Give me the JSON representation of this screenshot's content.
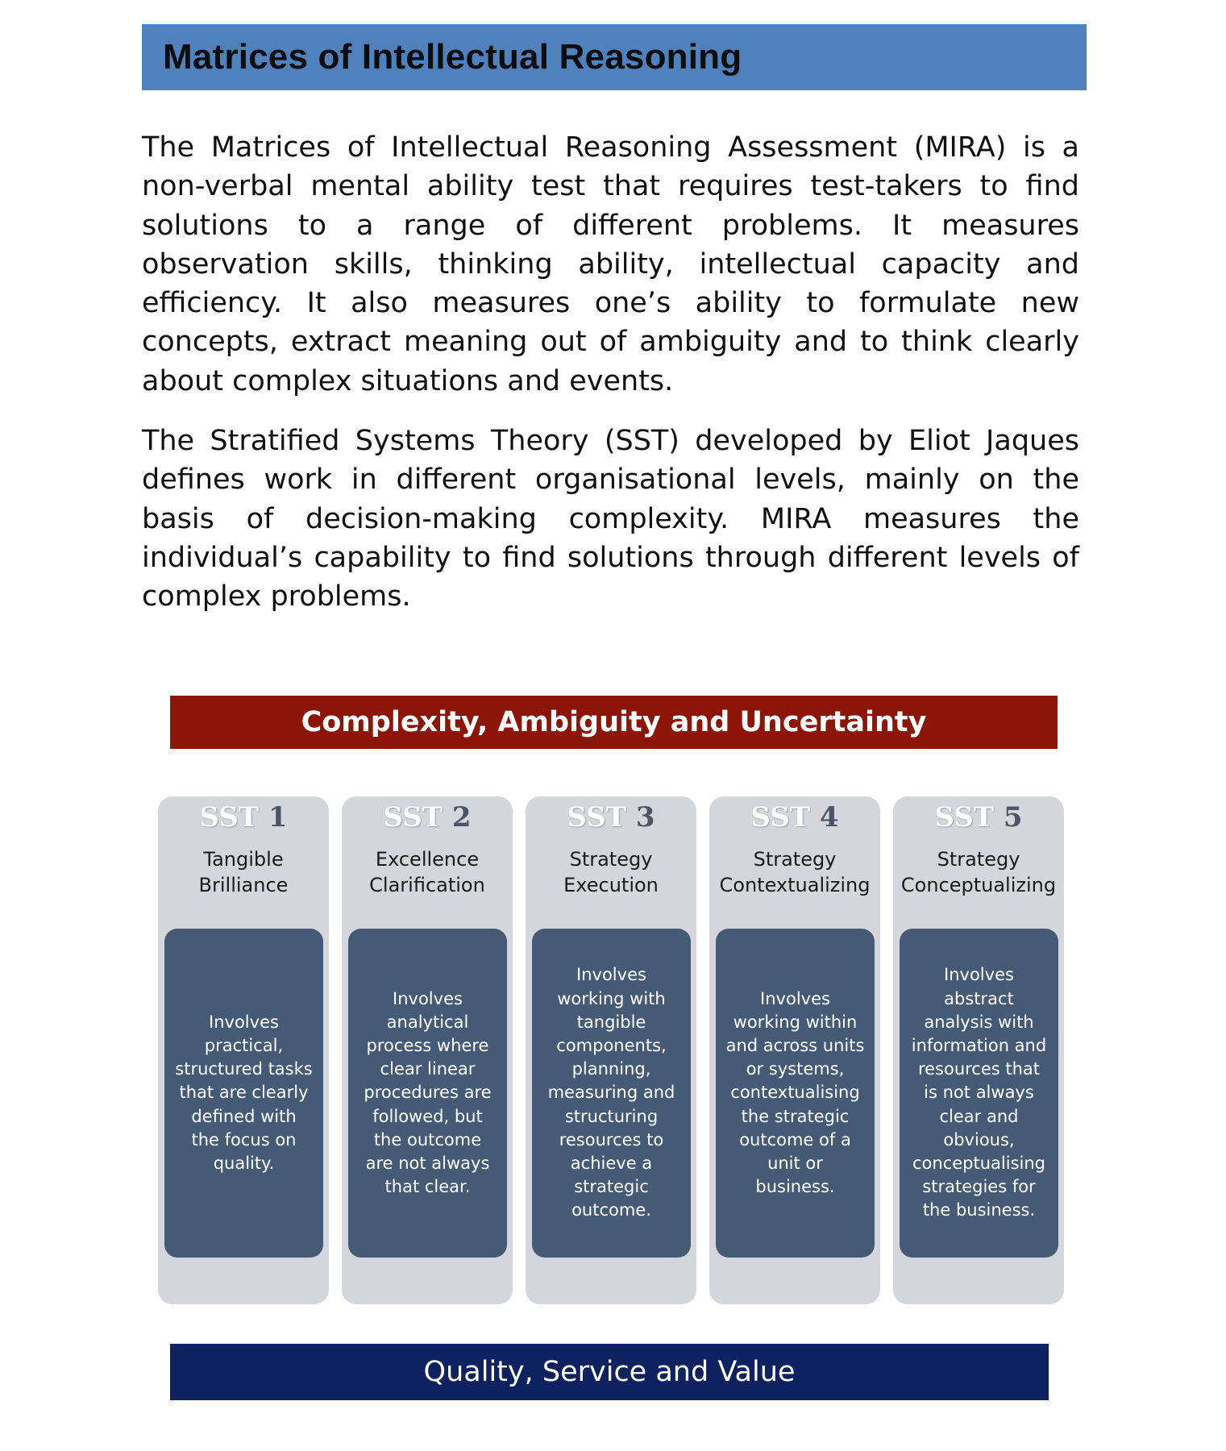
{
  "header": {
    "title": "Matrices of Intellectual Reasoning"
  },
  "intro": {
    "paragraphs": [
      "The Matrices of Intellectual Reasoning Assessment (MIRA) is a non-verbal mental ability test that requires test-takers to find solutions to a range of different problems. It measures observation skills, thinking ability, intellectual capacity and efficiency. It also measures one’s ability to formulate new concepts, extract meaning out of ambiguity and to think clearly about complex situations and events.",
      "The Stratified Systems Theory (SST) developed by Eliot Jaques defines work in different organisational levels, mainly on the basis of decision-making complexity. MIRA measures the individual’s capability to find solutions through different levels of complex problems."
    ]
  },
  "diagram": {
    "top_banner": "Complexity, Ambiguity and Uncertainty",
    "bottom_banner": "Quality, Service and Value",
    "levels": [
      {
        "prefix": "SST",
        "number": "1",
        "title": "Tangible\nBrilliance",
        "description": "Involves\npractical,\nstructured tasks\nthat are clearly\ndefined with\nthe focus on\nquality."
      },
      {
        "prefix": "SST",
        "number": "2",
        "title": "Excellence\nClarification",
        "description": "Involves\nanalytical\nprocess where\nclear linear\nprocedures are\nfollowed, but\nthe outcome\nare not always\nthat clear."
      },
      {
        "prefix": "SST",
        "number": "3",
        "title": "Strategy\nExecution",
        "description": "Involves\nworking with\ntangible\ncomponents,\nplanning,\nmeasuring and\nstructuring\nresources to\nachieve a\nstrategic\noutcome."
      },
      {
        "prefix": "SST",
        "number": "4",
        "title": "Strategy\nContextualizing",
        "description": "Involves\nworking within\nand across units\nor systems,\ncontextualising\nthe strategic\noutcome of a\nunit or\nbusiness."
      },
      {
        "prefix": "SST",
        "number": "5",
        "title": "Strategy\nConceptualizing",
        "description": "Involves\nabstract\nanalysis with\ninformation and\nresources that\nis not always\nclear and\nobvious,\nconceptualising\nstrategies for\nthe business."
      }
    ]
  },
  "colors": {
    "header_bar": "#4f81bd",
    "top_banner": "#8c1507",
    "bottom_banner": "#0e2160",
    "card_background": "#d4d6db",
    "description_box": "#455a74"
  }
}
